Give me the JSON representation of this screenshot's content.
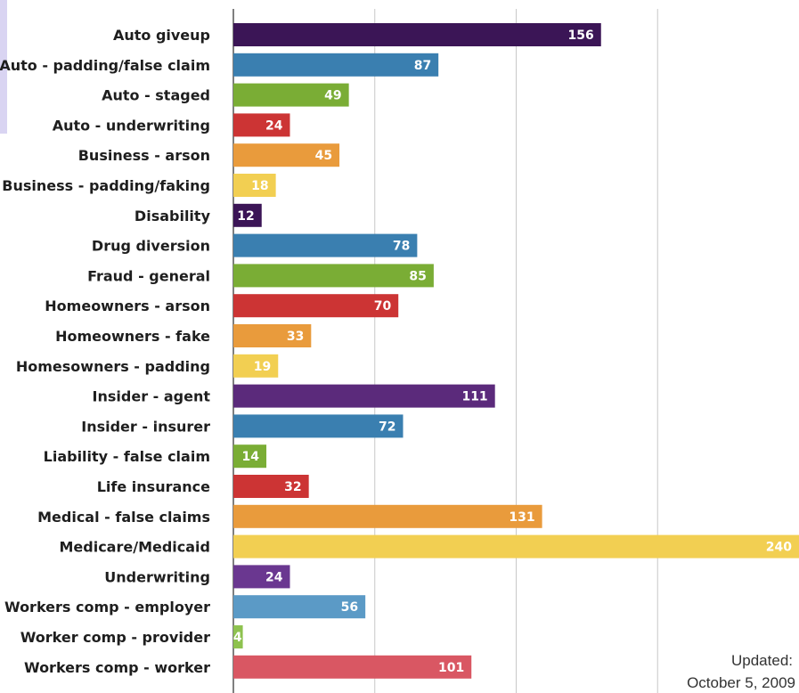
{
  "chart_data": {
    "type": "bar",
    "orientation": "horizontal",
    "categories": [
      "Auto giveup",
      "Auto - padding/false claim",
      "Auto - staged",
      "Auto - underwriting",
      "Business - arson",
      "Business - padding/faking",
      "Disability",
      "Drug diversion",
      "Fraud - general",
      "Homeowners - arson",
      "Homeowners - fake",
      "Homesowners - padding",
      "Insider - agent",
      "Insider - insurer",
      "Liability - false claim",
      "Life insurance",
      "Medical - false claims",
      "Medicare/Medicaid",
      "Underwriting",
      "Workers comp - employer",
      "Worker comp - provider",
      "Workers comp - worker"
    ],
    "values": [
      156,
      87,
      49,
      24,
      45,
      18,
      12,
      78,
      85,
      70,
      33,
      19,
      111,
      72,
      14,
      32,
      131,
      240,
      24,
      56,
      4,
      101
    ],
    "colors": [
      "#3b1556",
      "#3a7fb0",
      "#7aad35",
      "#cc3434",
      "#e99b3c",
      "#f2cf52",
      "#3b1556",
      "#3a7fb0",
      "#7aad35",
      "#cc3434",
      "#e99b3c",
      "#f2cf52",
      "#5b2a7b",
      "#3a7fb0",
      "#7aad35",
      "#cc3434",
      "#e99b3c",
      "#f2cf52",
      "#6a3790",
      "#5b9ac6",
      "#8ec24f",
      "#d95763"
    ],
    "xlim": [
      0,
      240
    ],
    "grid": true,
    "title": "",
    "xlabel": "",
    "ylabel": ""
  },
  "footnote": {
    "line1": "Updated:",
    "line2": "October 5, 2009"
  }
}
